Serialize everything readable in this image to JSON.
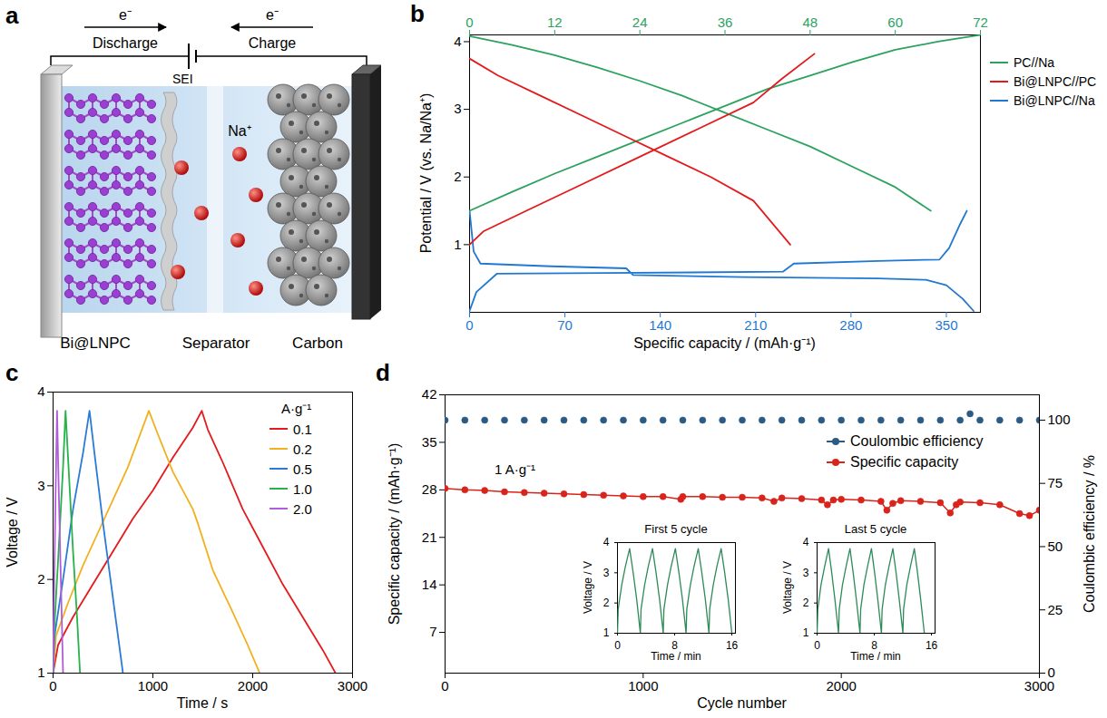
{
  "diagram": {
    "panel": "a",
    "circuit": [
      {
        "direction": "right",
        "label": "e⁻",
        "text": "Discharge"
      },
      {
        "direction": "left",
        "label": "e⁻",
        "text": "Charge"
      }
    ],
    "layers": {
      "anode": "Bi@LNPC",
      "interphase": "SEI",
      "separator": "Separator",
      "cathode": "Carbon"
    },
    "ion": "Na⁺"
  },
  "chart_data": [
    {
      "panel": "b",
      "type": "line",
      "x_label": "Specific capacity / (mAh·g⁻¹)",
      "y_label": "Potential / V (vs. Na/Na⁺)",
      "xlim": [
        0,
        375
      ],
      "xticks": [
        0,
        70,
        140,
        210,
        280,
        350
      ],
      "x2lim": [
        0,
        72
      ],
      "x2ticks": [
        0,
        12,
        24,
        36,
        48,
        60,
        72
      ],
      "ylim": [
        0,
        4.1
      ],
      "yticks": [
        1,
        2,
        3,
        4
      ],
      "legend": "right",
      "series": [
        {
          "name": "PC//Na",
          "color": "#2ca25f",
          "axis": "x2",
          "x": [
            0,
            6,
            12,
            18,
            24,
            30,
            36,
            42,
            48,
            54,
            60,
            66,
            72,
            null,
            0,
            6,
            12,
            18,
            24,
            30,
            36,
            42,
            48,
            54,
            60,
            65
          ],
          "values": [
            1.5,
            1.78,
            2.05,
            2.3,
            2.55,
            2.8,
            3.05,
            3.3,
            3.5,
            3.7,
            3.88,
            4.0,
            4.1,
            null,
            4.08,
            3.95,
            3.8,
            3.62,
            3.42,
            3.2,
            2.95,
            2.7,
            2.45,
            2.15,
            1.85,
            1.5
          ]
        },
        {
          "name": "Bi@LNPC//PC",
          "color": "#e31a1c",
          "axis": "x2",
          "x": [
            0,
            2,
            8,
            16,
            24,
            32,
            40,
            44,
            48.6,
            null,
            0,
            4,
            10,
            16,
            22,
            28,
            34,
            40,
            45.2
          ],
          "values": [
            1.0,
            1.2,
            1.5,
            1.9,
            2.3,
            2.7,
            3.1,
            3.45,
            3.82,
            null,
            3.75,
            3.5,
            3.2,
            2.9,
            2.6,
            2.3,
            2.0,
            1.65,
            1.0
          ]
        },
        {
          "name": "Bi@LNPC//Na",
          "color": "#1f78d1",
          "axis": "x",
          "x": [
            0,
            5,
            20,
            100,
            230,
            238,
            300,
            345,
            352,
            360,
            365,
            null,
            0,
            3,
            8,
            60,
            115,
            120,
            200,
            300,
            335,
            350,
            362,
            370
          ],
          "values": [
            0.02,
            0.3,
            0.57,
            0.58,
            0.6,
            0.72,
            0.76,
            0.78,
            0.95,
            1.3,
            1.5,
            null,
            1.5,
            0.9,
            0.72,
            0.68,
            0.65,
            0.55,
            0.52,
            0.5,
            0.48,
            0.4,
            0.2,
            0.02
          ]
        }
      ]
    },
    {
      "panel": "c",
      "type": "line",
      "x_label": "Time / s",
      "y_label": "Voltage / V",
      "xlim": [
        0,
        3000
      ],
      "xticks": [
        0,
        1000,
        2000,
        3000
      ],
      "ylim": [
        1,
        4
      ],
      "yticks": [
        1,
        2,
        3,
        4
      ],
      "legend": "top right",
      "legend_title": "A·g⁻¹",
      "series": [
        {
          "name": "0.1",
          "color": "#e41a1c",
          "x": [
            0,
            50,
            200,
            400,
            600,
            800,
            1000,
            1200,
            1400,
            1490,
            1550,
            1700,
            1900,
            2100,
            2300,
            2500,
            2700,
            2830
          ],
          "values": [
            1.0,
            1.3,
            1.6,
            1.95,
            2.3,
            2.65,
            2.95,
            3.3,
            3.62,
            3.8,
            3.6,
            3.25,
            2.75,
            2.35,
            1.95,
            1.6,
            1.25,
            1.0
          ]
        },
        {
          "name": "0.2",
          "color": "#f2b01e",
          "x": [
            0,
            30,
            150,
            300,
            450,
            600,
            750,
            960,
            1050,
            1200,
            1400,
            1450,
            1600,
            1800,
            1950,
            2070
          ],
          "values": [
            1.0,
            1.4,
            1.75,
            2.15,
            2.5,
            2.85,
            3.2,
            3.8,
            3.55,
            3.15,
            2.75,
            2.6,
            2.1,
            1.65,
            1.3,
            1.0
          ]
        },
        {
          "name": "0.5",
          "color": "#2b7bd6",
          "x": [
            0,
            15,
            100,
            200,
            300,
            365,
            420,
            500,
            600,
            700
          ],
          "values": [
            1.0,
            1.4,
            2.0,
            2.75,
            3.35,
            3.8,
            3.3,
            2.6,
            1.8,
            1.0
          ]
        },
        {
          "name": "1.0",
          "color": "#27b24a",
          "x": [
            0,
            8,
            50,
            100,
            125,
            160,
            200,
            240,
            270
          ],
          "values": [
            1.0,
            1.4,
            2.2,
            3.2,
            3.8,
            3.1,
            2.3,
            1.6,
            1.0
          ]
        },
        {
          "name": "2.0",
          "color": "#b05ddb",
          "x": [
            0,
            5,
            25,
            40,
            60,
            80,
            100
          ],
          "values": [
            1.0,
            1.5,
            2.9,
            3.8,
            2.8,
            1.9,
            1.0
          ]
        }
      ]
    },
    {
      "panel": "d",
      "type": "line",
      "x_label": "Cycle number",
      "y_label": "Specific capacity / (mAh·g⁻¹)",
      "y2_label": "Coulombic efficiency / %",
      "xlim": [
        0,
        3000
      ],
      "xticks": [
        0,
        1000,
        2000,
        3000
      ],
      "ylim": [
        1,
        42
      ],
      "yticks": [
        7,
        14,
        21,
        28,
        35,
        42
      ],
      "y2lim": [
        0,
        110
      ],
      "y2ticks": [
        0,
        25,
        50,
        75,
        100
      ],
      "legend": "top right",
      "annotations": [
        "1 A·g⁻¹"
      ],
      "series": [
        {
          "name": "Coulombic efficiency",
          "color": "#2b5b84",
          "axis": "y2",
          "type": "scatter",
          "marker": "circle",
          "x": [
            0,
            100,
            200,
            300,
            400,
            500,
            600,
            700,
            800,
            900,
            1000,
            1100,
            1200,
            1300,
            1400,
            1500,
            1600,
            1700,
            1800,
            1900,
            2000,
            2100,
            2200,
            2300,
            2400,
            2500,
            2600,
            2650,
            2700,
            2800,
            2900,
            3000
          ],
          "values": [
            100,
            100,
            100,
            100,
            100,
            100,
            100,
            100,
            100,
            100,
            100,
            100,
            100,
            100,
            100,
            100,
            100,
            100,
            100,
            100,
            100,
            100,
            100,
            100,
            100,
            100,
            100,
            102.5,
            100,
            100,
            100,
            100
          ]
        },
        {
          "name": "Specific capacity",
          "color": "#d9241c",
          "axis": "y",
          "type": "line",
          "marker": "circle",
          "x": [
            0,
            100,
            200,
            300,
            400,
            500,
            600,
            700,
            800,
            900,
            1000,
            1100,
            1190,
            1200,
            1300,
            1400,
            1500,
            1600,
            1660,
            1700,
            1800,
            1900,
            1930,
            1960,
            2000,
            2100,
            2200,
            2230,
            2260,
            2300,
            2400,
            2500,
            2550,
            2580,
            2600,
            2700,
            2800,
            2900,
            2950,
            3000
          ],
          "values": [
            28.2,
            28.0,
            27.9,
            27.7,
            27.6,
            27.5,
            27.4,
            27.3,
            27.2,
            27.1,
            27.0,
            27.0,
            26.6,
            27.0,
            27.0,
            26.9,
            26.9,
            26.8,
            26.3,
            26.8,
            26.7,
            26.5,
            25.8,
            26.5,
            26.6,
            26.5,
            26.3,
            25.0,
            26.0,
            26.4,
            26.3,
            26.1,
            24.6,
            25.8,
            26.2,
            26.1,
            25.8,
            24.5,
            24.2,
            25.0
          ]
        }
      ],
      "insets": [
        {
          "type": "line",
          "title": "First 5 cycle",
          "x_label": "Time / min",
          "y_label": "Voltage / V",
          "xlim": [
            0,
            16.5
          ],
          "xticks": [
            0,
            8,
            16
          ],
          "ylim": [
            1,
            4
          ],
          "yticks": [
            1,
            2,
            3,
            4
          ],
          "series": [
            {
              "color": "#2e8b57",
              "x": [
                0,
                0.1,
                0.6,
                1.1,
                1.7,
                2.2,
                2.7,
                3.2,
                3.3,
                3.8,
                4.3,
                4.9,
                5.4,
                5.9,
                6.4,
                6.5,
                7.0,
                7.5,
                8.1,
                8.6,
                9.1,
                9.6,
                9.7,
                10.2,
                10.7,
                11.3,
                11.8,
                12.3,
                12.8,
                12.9,
                13.4,
                13.9,
                14.5,
                15.0,
                15.5,
                16.0
              ],
              "values": [
                1.0,
                1.8,
                2.6,
                3.2,
                3.8,
                3.0,
                2.1,
                1.0,
                1.8,
                2.6,
                3.2,
                3.8,
                3.0,
                2.1,
                1.0,
                1.8,
                2.6,
                3.2,
                3.8,
                3.0,
                2.1,
                1.0,
                1.8,
                2.6,
                3.2,
                3.8,
                3.0,
                2.1,
                1.0,
                1.8,
                2.6,
                3.2,
                3.8,
                3.0,
                2.1,
                1.0
              ]
            }
          ]
        },
        {
          "type": "line",
          "title": "Last 5 cycle",
          "x_label": "Time / min",
          "y_label": "Voltage / V",
          "xlim": [
            0,
            16.5
          ],
          "xticks": [
            0,
            8,
            16
          ],
          "ylim": [
            1,
            4
          ],
          "yticks": [
            1,
            2,
            3,
            4
          ],
          "series": [
            {
              "color": "#2e8b57",
              "x": [
                0,
                0.1,
                0.55,
                1.05,
                1.6,
                2.05,
                2.5,
                3.0,
                3.1,
                3.55,
                4.05,
                4.6,
                5.05,
                5.5,
                6.0,
                6.1,
                6.55,
                7.05,
                7.6,
                8.05,
                8.5,
                9.0,
                9.1,
                9.55,
                10.05,
                10.6,
                11.05,
                11.5,
                12.0,
                12.1,
                12.55,
                13.05,
                13.6,
                14.05,
                14.5,
                15.0
              ],
              "values": [
                1.0,
                1.8,
                2.6,
                3.2,
                3.8,
                3.0,
                2.1,
                1.0,
                1.8,
                2.6,
                3.2,
                3.8,
                3.0,
                2.1,
                1.0,
                1.8,
                2.6,
                3.2,
                3.8,
                3.0,
                2.1,
                1.0,
                1.8,
                2.6,
                3.2,
                3.8,
                3.0,
                2.1,
                1.0,
                1.8,
                2.6,
                3.2,
                3.8,
                3.0,
                2.1,
                1.0
              ]
            }
          ]
        }
      ]
    }
  ]
}
